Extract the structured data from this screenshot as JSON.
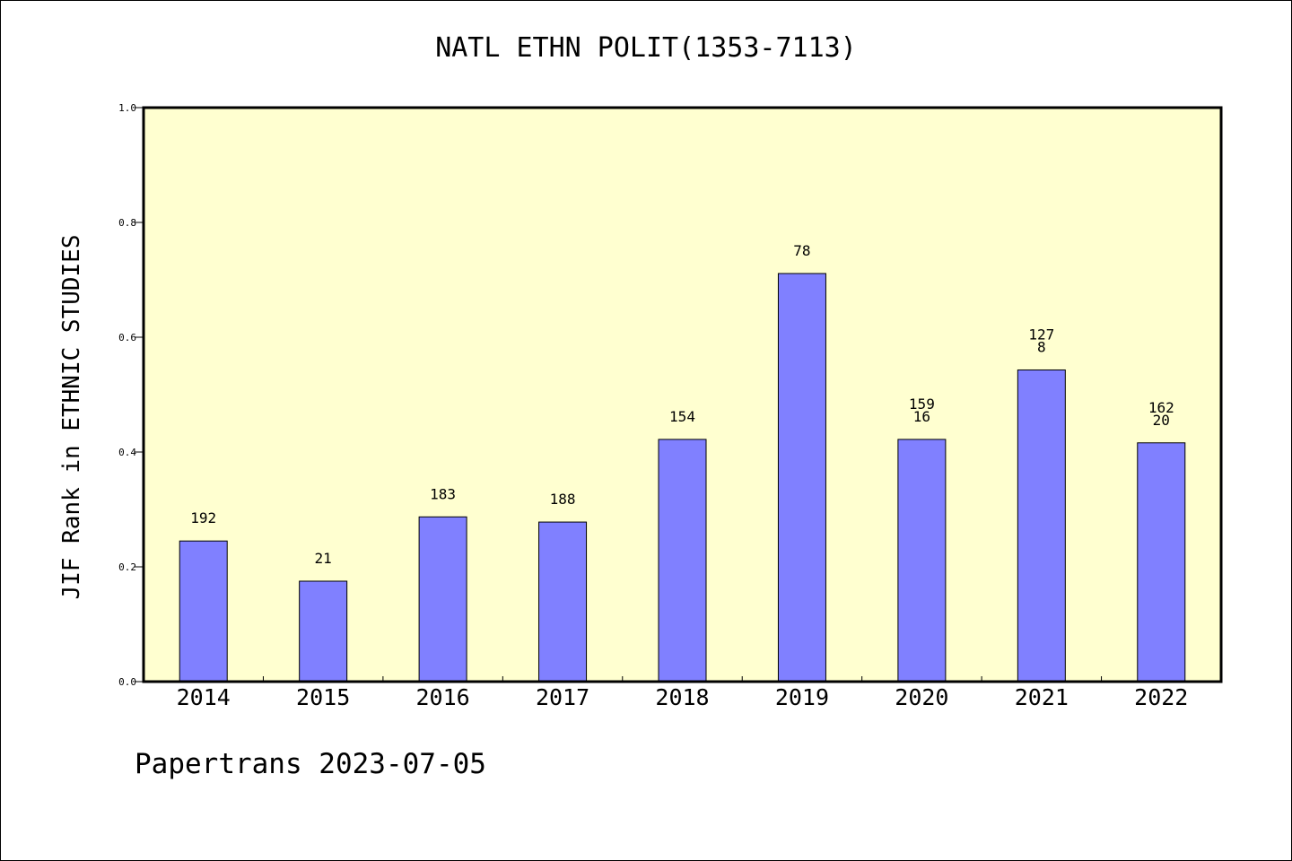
{
  "title": "NATL ETHN POLIT(1353-7113)",
  "footer": "Papertrans 2023-07-05",
  "chart_data": {
    "type": "bar",
    "title": "NATL ETHN POLIT(1353-7113)",
    "xlabel": "",
    "ylabel": "JIF Rank in ETHNIC STUDIES",
    "ylim": [
      0,
      1.0
    ],
    "yticks": [
      "0.0",
      "0.2",
      "0.4",
      "0.6",
      "0.8",
      "1.0"
    ],
    "grid": false,
    "categories": [
      "2014",
      "2015",
      "2016",
      "2017",
      "2018",
      "2019",
      "2020",
      "2021",
      "2022"
    ],
    "values": [
      0.245,
      0.175,
      0.287,
      0.278,
      0.422,
      0.711,
      0.422,
      0.543,
      0.416
    ],
    "labels": [
      "192",
      "21",
      "183",
      "188",
      "154",
      "78",
      "159\n16",
      "127\n8",
      "162\n20"
    ],
    "colors": {
      "bar": "#8080ff",
      "plot_background": "#ffffd0",
      "axis": "#000000"
    }
  }
}
